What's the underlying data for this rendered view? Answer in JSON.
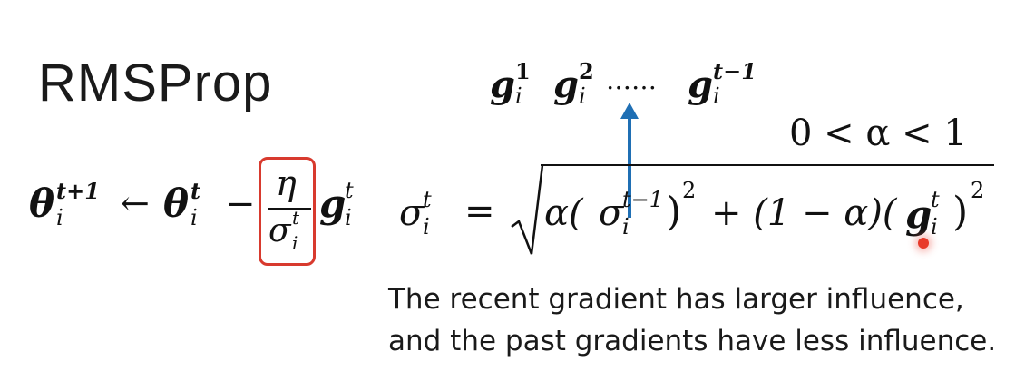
{
  "slide": {
    "title": "RMSProp",
    "seq": {
      "g": "g",
      "i": "i",
      "sup1": "1",
      "sup2": "2",
      "dots": "……",
      "sup_last": "t−1"
    },
    "alpha_range": "0 < α < 1",
    "update": {
      "theta": "θ",
      "sub_i": "i",
      "sup_t1": "t+1",
      "sup_t": "t",
      "arrow": "←",
      "minus": "−",
      "eta": "η",
      "sigma": "σ",
      "g": "g"
    },
    "sigma_eq": {
      "lhs": "σ",
      "sub_i": "i",
      "sup_t": "t",
      "equals": "=",
      "alpha": "α(",
      "sigma_prev": "σ",
      "sup_tm1": "t−1",
      "close_sq": ")",
      "sq": "2",
      "plus_part": "+ (1 − α)(",
      "g": "g",
      "close": ")",
      "sq2": "2"
    },
    "caption_line1": "The recent gradient has larger influence,",
    "caption_line2": "and the past gradients have less influence.",
    "accent_color": "#1f6fb4",
    "highlight_color": "#d83a2e"
  }
}
